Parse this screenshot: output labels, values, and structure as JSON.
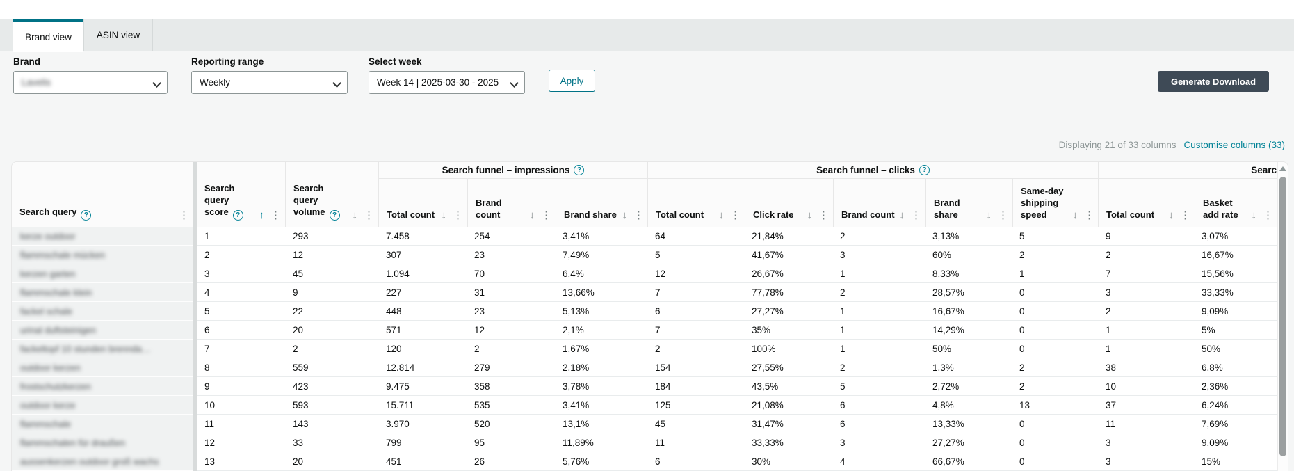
{
  "colors": {
    "accent_teal": "#007286",
    "link_teal": "#008296",
    "download_button_bg": "#3e4a56"
  },
  "tabs": [
    {
      "label": "Brand view",
      "active": true
    },
    {
      "label": "ASIN view",
      "active": false
    }
  ],
  "filters": {
    "brand": {
      "label": "Brand",
      "value": "Lavelis",
      "redacted": true
    },
    "reporting_range": {
      "label": "Reporting range",
      "value": "Weekly"
    },
    "select_week": {
      "label": "Select week",
      "value": "Week 14 | 2025-03-30 - 2025"
    },
    "apply_label": "Apply"
  },
  "toolbar": {
    "generate_download_label": "Generate Download"
  },
  "columns_info": {
    "displaying_text": "Displaying 21 of 33 columns",
    "customise_link": "Customise columns (33)"
  },
  "table": {
    "standalone_columns": [
      {
        "label": "Search query",
        "help": true,
        "kebab": true
      },
      {
        "label": "Search query score",
        "help": true,
        "sort": "asc",
        "sort_active": true,
        "kebab": true
      },
      {
        "label": "Search query volume",
        "help": true,
        "sort": "desc",
        "kebab": true
      }
    ],
    "groups": [
      {
        "label": "Search funnel – impressions",
        "help": true,
        "clipped": false,
        "columns": [
          {
            "label": "Total count",
            "sort": "desc",
            "kebab": true
          },
          {
            "label": "Brand count",
            "sort": "desc",
            "kebab": true
          },
          {
            "label": "Brand share",
            "sort": "desc",
            "kebab": true
          }
        ]
      },
      {
        "label": "Search funnel – clicks",
        "help": true,
        "clipped": false,
        "columns": [
          {
            "label": "Total count",
            "sort": "desc",
            "kebab": true
          },
          {
            "label": "Click rate",
            "sort": "desc",
            "kebab": true
          },
          {
            "label": "Brand count",
            "sort": "desc",
            "kebab": true
          },
          {
            "label": "Brand share",
            "sort": "desc",
            "kebab": true
          },
          {
            "label": "Same-day shipping speed",
            "sort": "desc",
            "kebab": true
          }
        ]
      },
      {
        "label": "Searc",
        "help": false,
        "clipped": true,
        "columns": [
          {
            "label": "Total count",
            "sort": "desc",
            "kebab": true
          },
          {
            "label": "Basket add rate",
            "sort": "desc",
            "kebab": true
          }
        ]
      }
    ],
    "rows": [
      {
        "query": "kerze outdoor",
        "redacted": true,
        "values": [
          "1",
          "293",
          "7.458",
          "254",
          "3,41%",
          "64",
          "21,84%",
          "2",
          "3,13%",
          "5",
          "9",
          "3,07%"
        ]
      },
      {
        "query": "flammschale mücken",
        "redacted": true,
        "values": [
          "2",
          "12",
          "307",
          "23",
          "7,49%",
          "5",
          "41,67%",
          "3",
          "60%",
          "2",
          "2",
          "16,67%"
        ]
      },
      {
        "query": "kerzen garten",
        "redacted": true,
        "values": [
          "3",
          "45",
          "1.094",
          "70",
          "6,4%",
          "12",
          "26,67%",
          "1",
          "8,33%",
          "1",
          "7",
          "15,56%"
        ]
      },
      {
        "query": "flammschale klein",
        "redacted": true,
        "values": [
          "4",
          "9",
          "227",
          "31",
          "13,66%",
          "7",
          "77,78%",
          "2",
          "28,57%",
          "0",
          "3",
          "33,33%"
        ]
      },
      {
        "query": "fackel schale",
        "redacted": true,
        "values": [
          "5",
          "22",
          "448",
          "23",
          "5,13%",
          "6",
          "27,27%",
          "1",
          "16,67%",
          "0",
          "2",
          "9,09%"
        ]
      },
      {
        "query": "urinal duftsteinigen",
        "redacted": true,
        "values": [
          "6",
          "20",
          "571",
          "12",
          "2,1%",
          "7",
          "35%",
          "1",
          "14,29%",
          "0",
          "1",
          "5%"
        ]
      },
      {
        "query": "fackeltopf 10 stunden brennda…",
        "redacted": true,
        "values": [
          "7",
          "2",
          "120",
          "2",
          "1,67%",
          "2",
          "100%",
          "1",
          "50%",
          "0",
          "1",
          "50%"
        ]
      },
      {
        "query": "outdoor kerzen",
        "redacted": true,
        "values": [
          "8",
          "559",
          "12.814",
          "279",
          "2,18%",
          "154",
          "27,55%",
          "2",
          "1,3%",
          "2",
          "38",
          "6,8%"
        ]
      },
      {
        "query": "frostschutzkerzen",
        "redacted": true,
        "values": [
          "9",
          "423",
          "9.475",
          "358",
          "3,78%",
          "184",
          "43,5%",
          "5",
          "2,72%",
          "2",
          "10",
          "2,36%"
        ]
      },
      {
        "query": "outdoor kerze",
        "redacted": true,
        "values": [
          "10",
          "593",
          "15.711",
          "535",
          "3,41%",
          "125",
          "21,08%",
          "6",
          "4,8%",
          "13",
          "37",
          "6,24%"
        ]
      },
      {
        "query": "flammschale",
        "redacted": true,
        "values": [
          "11",
          "143",
          "3.970",
          "520",
          "13,1%",
          "45",
          "31,47%",
          "6",
          "13,33%",
          "0",
          "11",
          "7,69%"
        ]
      },
      {
        "query": "flammschalen für draußen",
        "redacted": true,
        "values": [
          "12",
          "33",
          "799",
          "95",
          "11,89%",
          "11",
          "33,33%",
          "3",
          "27,27%",
          "0",
          "3",
          "9,09%"
        ]
      },
      {
        "query": "aussenkerzen outdoor groß wachs",
        "redacted": true,
        "values": [
          "13",
          "20",
          "451",
          "26",
          "5,76%",
          "6",
          "30%",
          "4",
          "66,67%",
          "0",
          "3",
          "15%"
        ]
      }
    ]
  }
}
